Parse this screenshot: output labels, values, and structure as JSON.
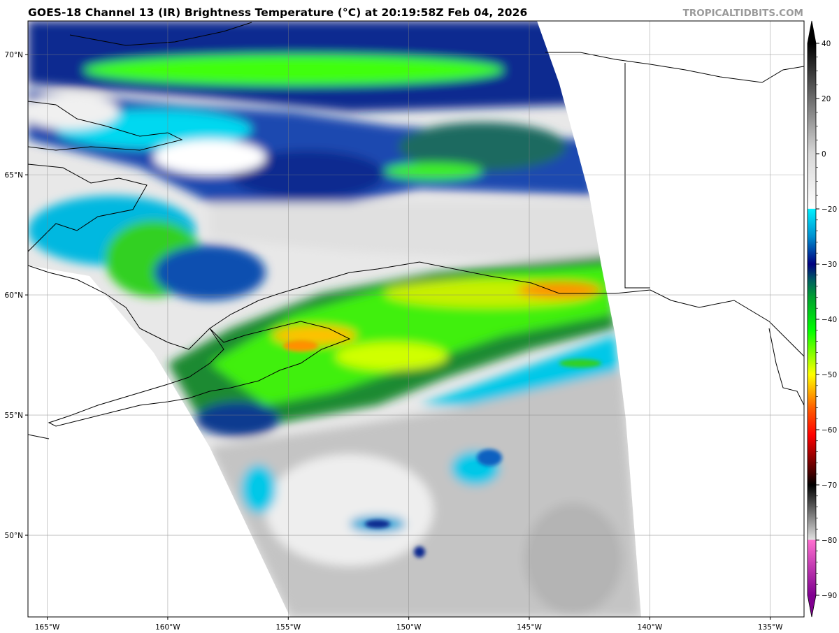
{
  "header": {
    "title": "GOES-18 Channel 13 (IR) Brightness Temperature (°C) at 20:19:58Z Feb 04, 2026",
    "brand": "TROPICALTIDBITS.COM"
  },
  "map": {
    "projection": "plate carree",
    "lon_range": [
      -165.8,
      -133.6
    ],
    "lat_range": [
      46.6,
      71.4
    ],
    "grid": true,
    "lon_ticks": [
      {
        "value": -165,
        "label": "165°W"
      },
      {
        "value": -160,
        "label": "160°W"
      },
      {
        "value": -155,
        "label": "155°W"
      },
      {
        "value": -150,
        "label": "150°W"
      },
      {
        "value": -145,
        "label": "145°W"
      },
      {
        "value": -140,
        "label": "140°W"
      },
      {
        "value": -135,
        "label": "135°W"
      }
    ],
    "lat_ticks": [
      {
        "value": 70,
        "label": "70°N"
      },
      {
        "value": 65,
        "label": "65°N"
      },
      {
        "value": 60,
        "label": "60°N"
      },
      {
        "value": 55,
        "label": "55°N"
      },
      {
        "value": 50,
        "label": "50°N"
      }
    ]
  },
  "colorbar": {
    "ticks": [
      {
        "value": 40,
        "label": "40"
      },
      {
        "value": 20,
        "label": "20"
      },
      {
        "value": 0,
        "label": "0"
      },
      {
        "value": -20,
        "label": "−20"
      },
      {
        "value": -30,
        "label": "−30"
      },
      {
        "value": -40,
        "label": "−40"
      },
      {
        "value": -50,
        "label": "−50"
      },
      {
        "value": -60,
        "label": "−60"
      },
      {
        "value": -70,
        "label": "−70"
      },
      {
        "value": -80,
        "label": "−80"
      },
      {
        "value": -90,
        "label": "−90"
      }
    ],
    "stops": [
      {
        "value": 40,
        "color": "#000000"
      },
      {
        "value": 0,
        "color": "#d8d8d8"
      },
      {
        "value": -19.9,
        "color": "#ffffff"
      },
      {
        "value": -20,
        "color": "#00f0ff"
      },
      {
        "value": -25,
        "color": "#0090d0"
      },
      {
        "value": -30,
        "color": "#000080"
      },
      {
        "value": -33,
        "color": "#006060"
      },
      {
        "value": -36,
        "color": "#00a030"
      },
      {
        "value": -42,
        "color": "#00ff00"
      },
      {
        "value": -50,
        "color": "#ffff00"
      },
      {
        "value": -56,
        "color": "#ff6000"
      },
      {
        "value": -61,
        "color": "#ff0000"
      },
      {
        "value": -68,
        "color": "#400000"
      },
      {
        "value": -70,
        "color": "#000000"
      },
      {
        "value": -79.9,
        "color": "#e0e0e0"
      },
      {
        "value": -80,
        "color": "#ff70d0"
      },
      {
        "value": -90,
        "color": "#800090"
      }
    ]
  }
}
